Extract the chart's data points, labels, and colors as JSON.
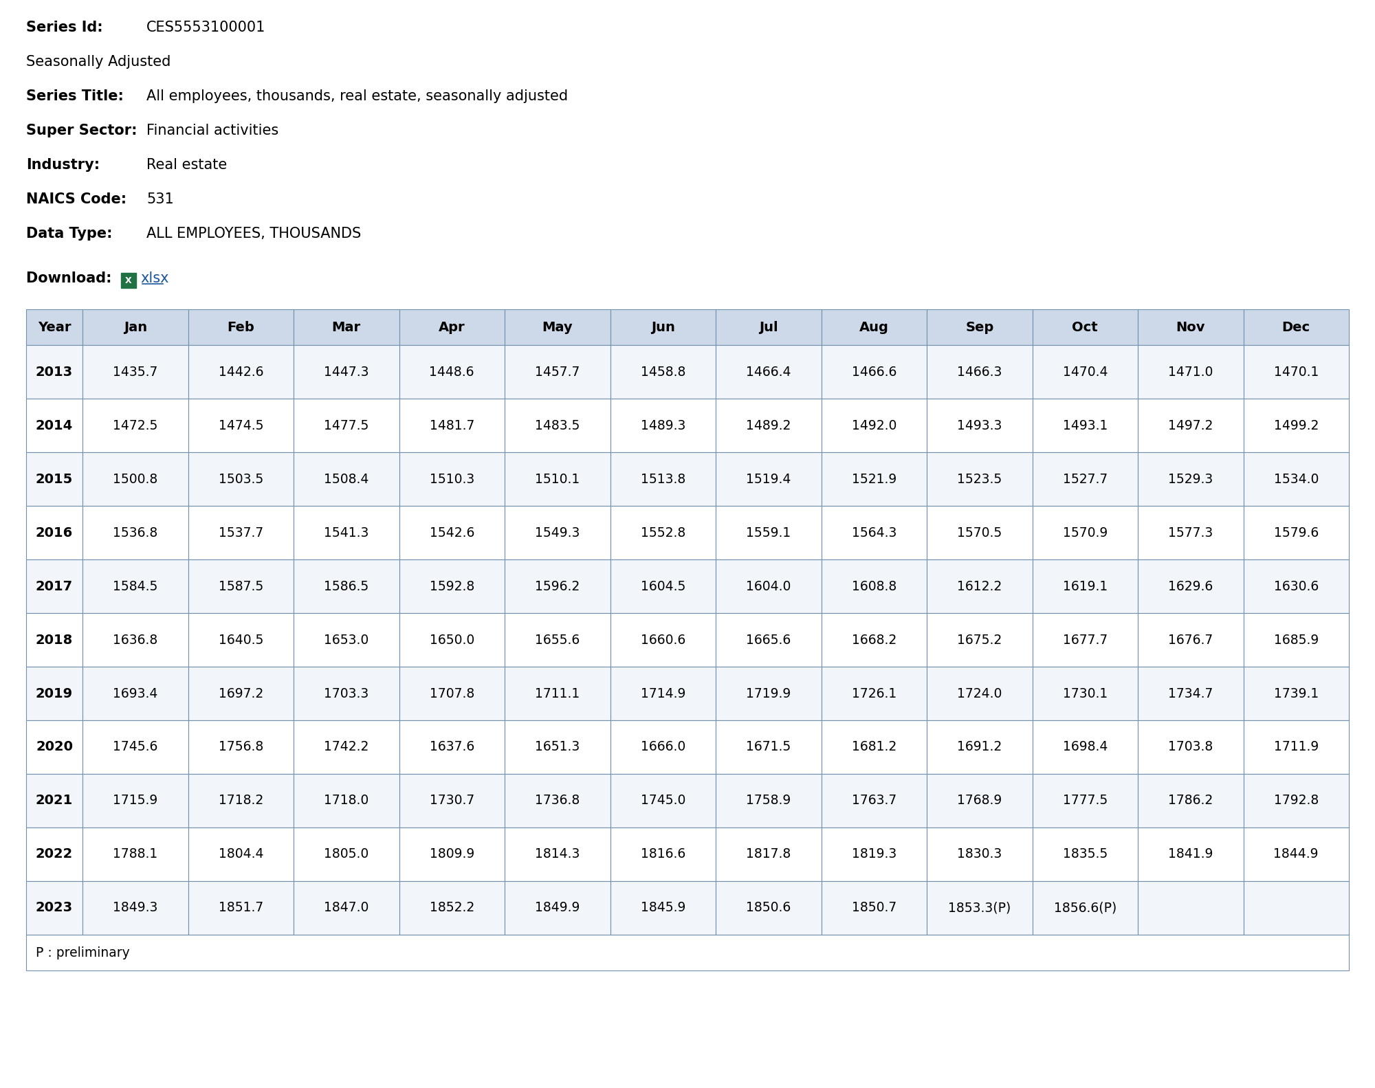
{
  "series_id": "CES5553100001",
  "seasonally_adjusted": "Seasonally Adjusted",
  "series_title_label": "Series Title:",
  "series_title_value": "All employees, thousands, real estate, seasonally adjusted",
  "super_sector_label": "Super Sector:",
  "super_sector_value": "Financial activities",
  "industry_label": "Industry:",
  "industry_value": "Real estate",
  "naics_label": "NAICS Code:",
  "naics_value": "531",
  "data_type_label": "Data Type:",
  "data_type_value": "ALL EMPLOYEES, THOUSANDS",
  "download_text": "Download:",
  "download_link": "xlsx",
  "columns": [
    "Year",
    "Jan",
    "Feb",
    "Mar",
    "Apr",
    "May",
    "Jun",
    "Jul",
    "Aug",
    "Sep",
    "Oct",
    "Nov",
    "Dec"
  ],
  "rows": [
    {
      "year": "2013",
      "values": [
        "1435.7",
        "1442.6",
        "1447.3",
        "1448.6",
        "1457.7",
        "1458.8",
        "1466.4",
        "1466.6",
        "1466.3",
        "1470.4",
        "1471.0",
        "1470.1"
      ]
    },
    {
      "year": "2014",
      "values": [
        "1472.5",
        "1474.5",
        "1477.5",
        "1481.7",
        "1483.5",
        "1489.3",
        "1489.2",
        "1492.0",
        "1493.3",
        "1493.1",
        "1497.2",
        "1499.2"
      ]
    },
    {
      "year": "2015",
      "values": [
        "1500.8",
        "1503.5",
        "1508.4",
        "1510.3",
        "1510.1",
        "1513.8",
        "1519.4",
        "1521.9",
        "1523.5",
        "1527.7",
        "1529.3",
        "1534.0"
      ]
    },
    {
      "year": "2016",
      "values": [
        "1536.8",
        "1537.7",
        "1541.3",
        "1542.6",
        "1549.3",
        "1552.8",
        "1559.1",
        "1564.3",
        "1570.5",
        "1570.9",
        "1577.3",
        "1579.6"
      ]
    },
    {
      "year": "2017",
      "values": [
        "1584.5",
        "1587.5",
        "1586.5",
        "1592.8",
        "1596.2",
        "1604.5",
        "1604.0",
        "1608.8",
        "1612.2",
        "1619.1",
        "1629.6",
        "1630.6"
      ]
    },
    {
      "year": "2018",
      "values": [
        "1636.8",
        "1640.5",
        "1653.0",
        "1650.0",
        "1655.6",
        "1660.6",
        "1665.6",
        "1668.2",
        "1675.2",
        "1677.7",
        "1676.7",
        "1685.9"
      ]
    },
    {
      "year": "2019",
      "values": [
        "1693.4",
        "1697.2",
        "1703.3",
        "1707.8",
        "1711.1",
        "1714.9",
        "1719.9",
        "1726.1",
        "1724.0",
        "1730.1",
        "1734.7",
        "1739.1"
      ]
    },
    {
      "year": "2020",
      "values": [
        "1745.6",
        "1756.8",
        "1742.2",
        "1637.6",
        "1651.3",
        "1666.0",
        "1671.5",
        "1681.2",
        "1691.2",
        "1698.4",
        "1703.8",
        "1711.9"
      ]
    },
    {
      "year": "2021",
      "values": [
        "1715.9",
        "1718.2",
        "1718.0",
        "1730.7",
        "1736.8",
        "1745.0",
        "1758.9",
        "1763.7",
        "1768.9",
        "1777.5",
        "1786.2",
        "1792.8"
      ]
    },
    {
      "year": "2022",
      "values": [
        "1788.1",
        "1804.4",
        "1805.0",
        "1809.9",
        "1814.3",
        "1816.6",
        "1817.8",
        "1819.3",
        "1830.3",
        "1835.5",
        "1841.9",
        "1844.9"
      ]
    },
    {
      "year": "2023",
      "values": [
        "1849.3",
        "1851.7",
        "1847.0",
        "1852.2",
        "1849.9",
        "1845.9",
        "1850.6",
        "1850.7",
        "1853.3(P)",
        "1856.6(P)",
        "",
        ""
      ]
    }
  ],
  "footnote": "P : preliminary",
  "bg_color": "#ffffff",
  "header_bg": "#cdd8e8",
  "border_color": "#7090b0",
  "excel_green": "#207245",
  "link_color": "#1a56a0"
}
